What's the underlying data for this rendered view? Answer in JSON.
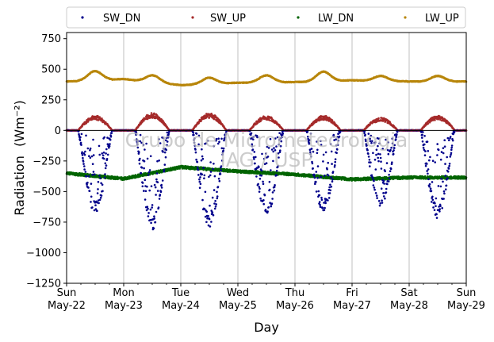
{
  "chart_data": {
    "type": "scatter",
    "title": "",
    "xlabel": "Day",
    "ylabel": "Radiation",
    "ylabel_unit": "(Wm⁻²)",
    "ylim": [
      -1250,
      800
    ],
    "yticks": [
      -1250,
      -1000,
      -750,
      -500,
      -250,
      0,
      250,
      500,
      750
    ],
    "xlim": [
      0,
      7
    ],
    "xticks": [
      {
        "day": 0,
        "line1": "Sun",
        "line2": "May-22"
      },
      {
        "day": 1,
        "line1": "Mon",
        "line2": "May-23"
      },
      {
        "day": 2,
        "line1": "Tue",
        "line2": "May-24"
      },
      {
        "day": 3,
        "line1": "Wed",
        "line2": "May-25"
      },
      {
        "day": 4,
        "line1": "Thu",
        "line2": "May-26"
      },
      {
        "day": 5,
        "line1": "Fri",
        "line2": "May-27"
      },
      {
        "day": 6,
        "line1": "Sat",
        "line2": "May-28"
      },
      {
        "day": 7,
        "line1": "Sun",
        "line2": "May-29"
      }
    ],
    "grid": "vertical",
    "zero_line": true,
    "legend_position": "top (outside, single row)",
    "watermark_lines": [
      "Grupo de Micrometeorologia",
      "IAG / USP"
    ],
    "series": [
      {
        "name": "SW_DN",
        "color": "#00008b",
        "kind": "shortwave_down",
        "daily_min": [
          -680,
          -830,
          -790,
          -700,
          -660,
          -620,
          -720
        ],
        "night_value": 0
      },
      {
        "name": "SW_UP",
        "color": "#a52a2a",
        "kind": "shortwave_up",
        "daily_max": [
          115,
          135,
          135,
          115,
          115,
          100,
          115
        ],
        "night_value": 0
      },
      {
        "name": "LW_DN",
        "color": "#006400",
        "kind": "longwave_down",
        "daily_level": [
          -350,
          -395,
          -300,
          -335,
          -360,
          -400,
          -385
        ],
        "end_level": -385
      },
      {
        "name": "LW_UP",
        "color": "#b8860b",
        "kind": "longwave_up",
        "daily_night": [
          400,
          420,
          370,
          390,
          395,
          410,
          400
        ],
        "daily_peak": [
          485,
          450,
          430,
          450,
          480,
          445,
          445
        ],
        "end_level": 400
      }
    ]
  }
}
